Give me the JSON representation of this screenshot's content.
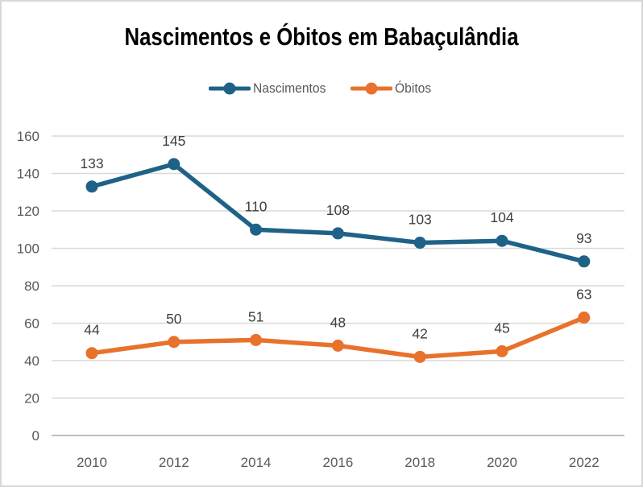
{
  "window": {
    "background": "#ffffff",
    "border_color": "#d8d8d8"
  },
  "chart_data": {
    "type": "line",
    "title": "Nascimentos e Óbitos em Babaçulândia",
    "categories": [
      "2010",
      "2012",
      "2014",
      "2016",
      "2018",
      "2020",
      "2022"
    ],
    "series": [
      {
        "name": "Nascimentos",
        "color": "#1F6287",
        "values": [
          133,
          145,
          110,
          108,
          103,
          104,
          93
        ]
      },
      {
        "name": "Óbitos",
        "color": "#E8722C",
        "values": [
          44,
          50,
          51,
          48,
          42,
          45,
          63
        ]
      }
    ],
    "y_ticks": [
      0,
      20,
      40,
      60,
      80,
      100,
      120,
      140,
      160
    ],
    "ylim": [
      0,
      160
    ],
    "xlabel": "",
    "ylabel": "",
    "grid": true,
    "legend_position": "top",
    "data_labels": true,
    "styles": {
      "gridline_color": "#D9D9D9",
      "axis_line_color": "#BFBFBF",
      "axis_label_color": "#595959",
      "data_label_color": "#404040"
    }
  }
}
